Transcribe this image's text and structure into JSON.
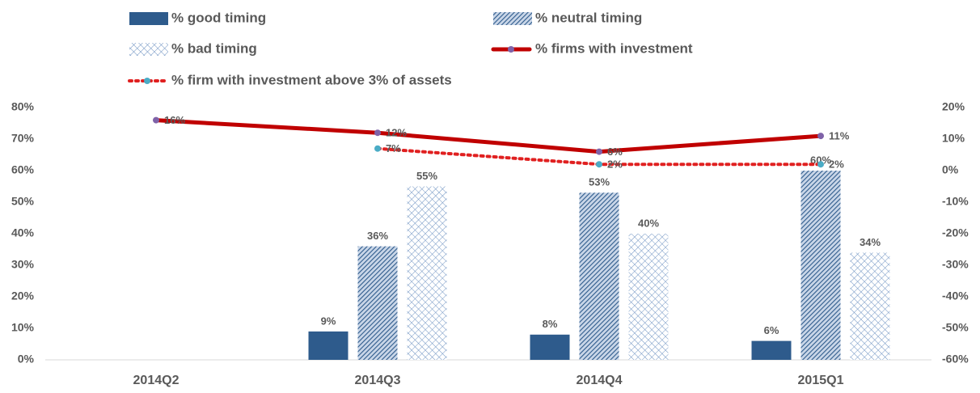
{
  "chart_data": {
    "type": "bar",
    "categories": [
      "2014Q2",
      "2014Q3",
      "2014Q4",
      "2015Q1"
    ],
    "series": [
      {
        "name": "% good timing",
        "type": "bar",
        "color": "#2e5b8c",
        "pattern": "solid",
        "values": [
          null,
          9,
          8,
          6
        ],
        "value_labels": [
          null,
          "9%",
          "8%",
          "6%"
        ]
      },
      {
        "name": "% neutral timing",
        "type": "bar",
        "color": "#2e5b8c",
        "pattern": "diagonal",
        "values": [
          null,
          36,
          53,
          60
        ],
        "value_labels": [
          null,
          "36%",
          "53%",
          "60%"
        ]
      },
      {
        "name": "% bad timing",
        "type": "bar",
        "color": "#5b84b8",
        "pattern": "cross",
        "values": [
          null,
          55,
          40,
          34
        ],
        "value_labels": [
          null,
          "55%",
          "40%",
          "34%"
        ]
      },
      {
        "name": "% firms with investment",
        "type": "line",
        "axis": "y2",
        "color": "#c00000",
        "marker_color": "#7f62a8",
        "dashed": false,
        "values": [
          16,
          12,
          6,
          11
        ],
        "value_labels": [
          "16%",
          "12%",
          "6%",
          "11%"
        ]
      },
      {
        "name": "% firm with investment above 3% of assets",
        "type": "line",
        "axis": "y2",
        "color": "#e02020",
        "marker_color": "#4bacc6",
        "dashed": true,
        "values": [
          null,
          7,
          2,
          2
        ],
        "value_labels": [
          null,
          "7%",
          "2%",
          "2%"
        ]
      }
    ],
    "ylim": [
      0,
      80
    ],
    "yticks": [
      {
        "value": 0,
        "label": "0%"
      },
      {
        "value": 10,
        "label": "10%"
      },
      {
        "value": 20,
        "label": "20%"
      },
      {
        "value": 30,
        "label": "30%"
      },
      {
        "value": 40,
        "label": "40%"
      },
      {
        "value": 50,
        "label": "50%"
      },
      {
        "value": 60,
        "label": "60%"
      },
      {
        "value": 70,
        "label": "70%"
      },
      {
        "value": 80,
        "label": "80%"
      }
    ],
    "y2lim": [
      -60,
      20
    ],
    "y2ticks": [
      {
        "value": -60,
        "label": "-60%"
      },
      {
        "value": -50,
        "label": "-50%"
      },
      {
        "value": -40,
        "label": "-40%"
      },
      {
        "value": -30,
        "label": "-30%"
      },
      {
        "value": -20,
        "label": "-20%"
      },
      {
        "value": -10,
        "label": "-10%"
      },
      {
        "value": 0,
        "label": "0%"
      },
      {
        "value": 10,
        "label": "10%"
      },
      {
        "value": 20,
        "label": "20%"
      }
    ],
    "legend": "top"
  }
}
